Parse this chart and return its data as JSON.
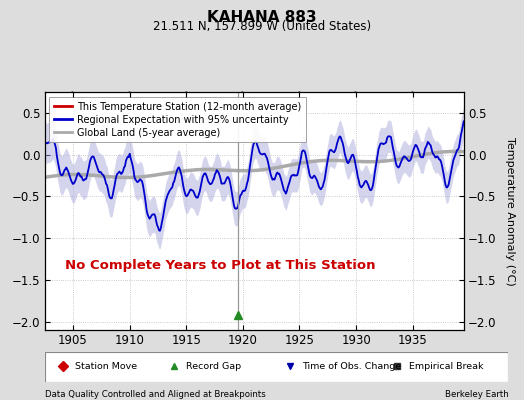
{
  "title": "KAHANA 883",
  "subtitle": "21.511 N, 157.899 W (United States)",
  "ylabel": "Temperature Anomaly (°C)",
  "xlabel_left": "Data Quality Controlled and Aligned at Breakpoints",
  "xlabel_right": "Berkeley Earth",
  "no_data_text": "No Complete Years to Plot at This Station",
  "no_data_color": "#cc0000",
  "xlim": [
    1902.5,
    1939.5
  ],
  "ylim": [
    -2.1,
    0.75
  ],
  "yticks": [
    -2.0,
    -1.5,
    -1.0,
    -0.5,
    0.0,
    0.5
  ],
  "xticks": [
    1905,
    1910,
    1915,
    1920,
    1925,
    1930,
    1935
  ],
  "regional_color": "#0000cc",
  "regional_fill": "#aaaadd",
  "regional_fill_alpha": 0.5,
  "global_color": "#aaaaaa",
  "global_lw": 2.5,
  "station_color": "#cc0000",
  "bg_color": "#dddddd",
  "plot_bg": "#ffffff",
  "grid_color": "#bbbbbb",
  "grid_ls": "dotted",
  "record_gap_x": 1919.6,
  "vertical_line_x": 1919.6,
  "legend_items": [
    {
      "label": "This Temperature Station (12-month average)",
      "color": "#cc0000",
      "lw": 2
    },
    {
      "label": "Regional Expectation with 95% uncertainty",
      "color": "#0000cc",
      "lw": 2
    },
    {
      "label": "Global Land (5-year average)",
      "color": "#aaaaaa",
      "lw": 2
    }
  ],
  "bottom_legend": [
    {
      "label": "Station Move",
      "marker": "D",
      "color": "#cc0000"
    },
    {
      "label": "Record Gap",
      "marker": "^",
      "color": "#228B22"
    },
    {
      "label": "Time of Obs. Change",
      "marker": "v",
      "color": "#0000aa"
    },
    {
      "label": "Empirical Break",
      "marker": "s",
      "color": "#333333"
    }
  ]
}
